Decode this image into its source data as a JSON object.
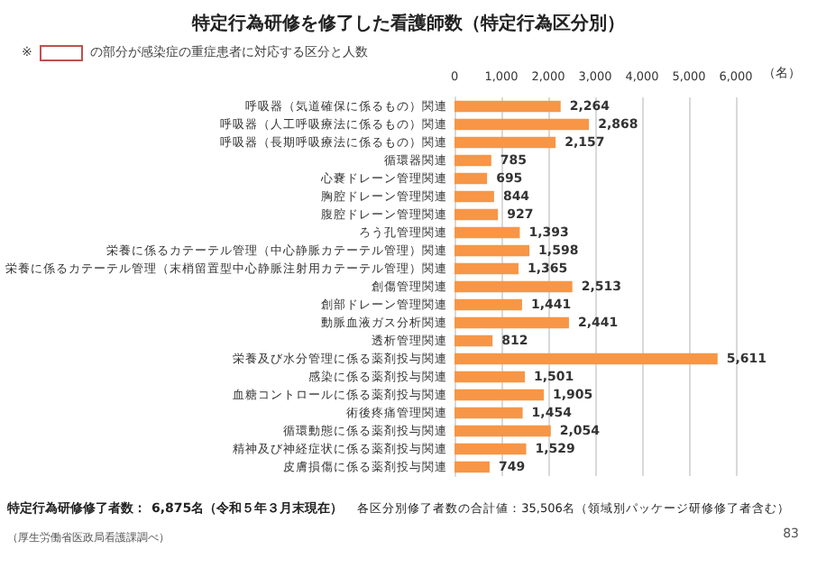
{
  "chart_data": {
    "type": "bar",
    "orientation": "horizontal",
    "title": "特定行為研修を修了した看護師数（特定行為区分別）",
    "xlabel": "（名）",
    "categories": [
      "呼吸器（気道確保に係るもの）関連",
      "呼吸器（人工呼吸療法に係るもの）関連",
      "呼吸器（長期呼吸療法に係るもの）関連",
      "循環器関連",
      "心嚢ドレーン管理関連",
      "胸腔ドレーン管理関連",
      "腹腔ドレーン管理関連",
      "ろう孔管理関連",
      "栄養に係るカテーテル管理（中心静脈カテーテル管理）関連",
      "栄養に係るカテーテル管理（末梢留置型中心静脈注射用カテーテル管理）関連",
      "創傷管理関連",
      "創部ドレーン管理関連",
      "動脈血液ガス分析関連",
      "透析管理関連",
      "栄養及び水分管理に係る薬剤投与関連",
      "感染に係る薬剤投与関連",
      "血糖コントロールに係る薬剤投与関連",
      "術後疼痛管理関連",
      "循環動態に係る薬剤投与関連",
      "精神及び神経症状に係る薬剤投与関連",
      "皮膚損傷に係る薬剤投与関連"
    ],
    "values": [
      2264,
      2868,
      2157,
      785,
      695,
      844,
      927,
      1393,
      1598,
      1365,
      2513,
      1441,
      2441,
      812,
      5611,
      1501,
      1905,
      1454,
      2054,
      1529,
      749
    ],
    "value_labels": [
      "2,264",
      "2,868",
      "2,157",
      "785",
      "695",
      "844",
      "927",
      "1,393",
      "1,598",
      "1,365",
      "2,513",
      "1,441",
      "2,441",
      "812",
      "5,611",
      "1,501",
      "1,905",
      "1,454",
      "2,054",
      "1,529",
      "749"
    ],
    "color": "#f79646",
    "xlim": [
      0,
      6000
    ],
    "xticks": [
      0,
      {
        "value": 1000,
        "label": "1,000"
      },
      {
        "value": 2000,
        "label": "2,000"
      },
      {
        "value": 3000,
        "label": "3,000"
      },
      {
        "value": 4000,
        "label": "4,000"
      },
      {
        "value": 5000,
        "label": "5,000"
      },
      {
        "value": 6000,
        "label": "6,000"
      }
    ],
    "grid": "x",
    "annotations": [
      "※",
      "の部分が感染症の重症患者に対応する区分と人数",
      "特定行為研修修了者数：",
      "6,875名（令和５年３月末現在）",
      "各区分別修了者数の合計値：35,506名（領域別パッケージ研修修了者含む）",
      "（厚生労働省医政局看護課調べ）",
      "83"
    ]
  }
}
